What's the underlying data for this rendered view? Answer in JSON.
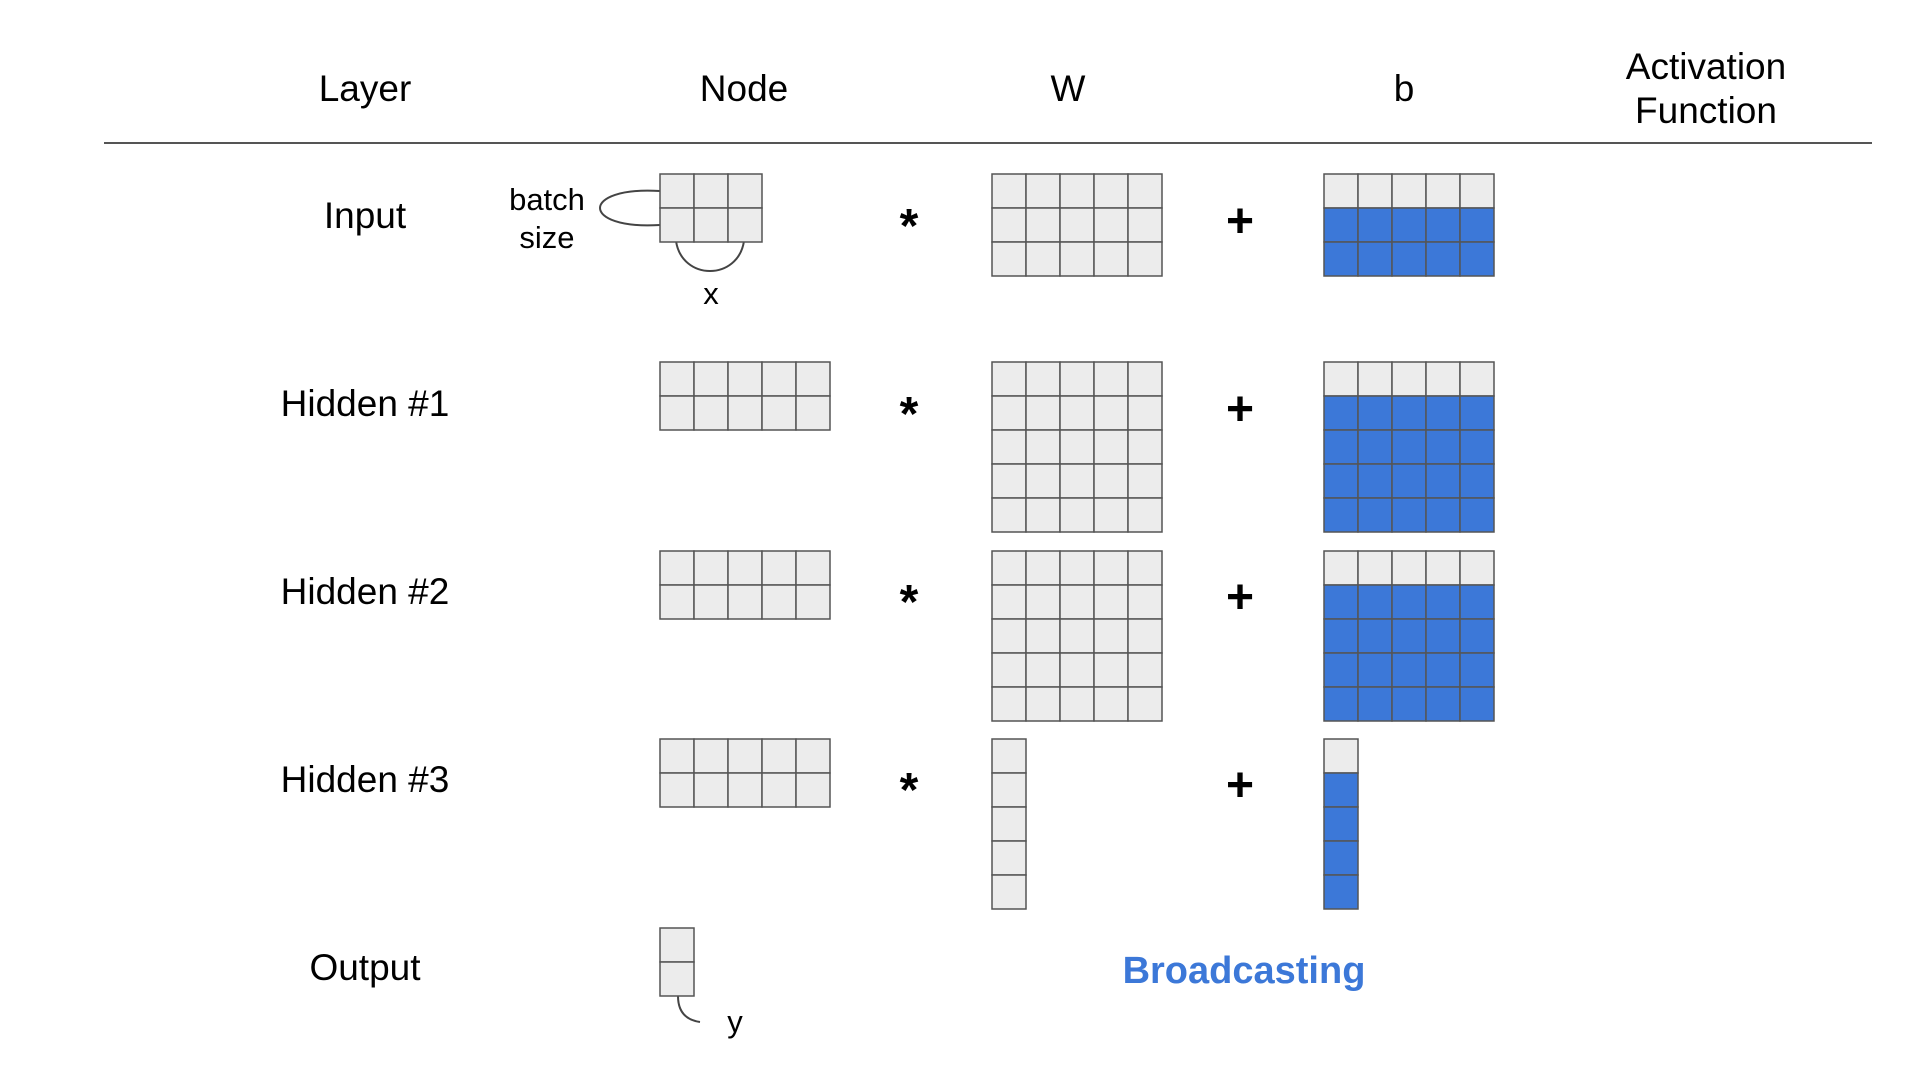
{
  "header": {
    "layer": "Layer",
    "node": "Node",
    "w": "W",
    "b": "b",
    "activation_line1": "Activation",
    "activation_line2": "Function"
  },
  "rows": [
    {
      "id": "input",
      "label": "Input",
      "node": {
        "rows": 2,
        "cols": 3
      },
      "w": {
        "rows": 3,
        "cols": 5
      },
      "b": {
        "rows": 3,
        "cols": 5
      },
      "op1": "*",
      "op2": "+"
    },
    {
      "id": "hidden1",
      "label": "Hidden #1",
      "node": {
        "rows": 2,
        "cols": 5
      },
      "w": {
        "rows": 5,
        "cols": 5
      },
      "b": {
        "rows": 5,
        "cols": 5
      },
      "op1": "*",
      "op2": "+"
    },
    {
      "id": "hidden2",
      "label": "Hidden #2",
      "node": {
        "rows": 2,
        "cols": 5
      },
      "w": {
        "rows": 5,
        "cols": 5
      },
      "b": {
        "rows": 5,
        "cols": 5
      },
      "op1": "*",
      "op2": "+"
    },
    {
      "id": "hidden3",
      "label": "Hidden #3",
      "node": {
        "rows": 2,
        "cols": 5
      },
      "w": {
        "rows": 5,
        "cols": 1
      },
      "b": {
        "rows": 5,
        "cols": 1
      },
      "op1": "*",
      "op2": "+"
    },
    {
      "id": "output",
      "label": "Output",
      "node": {
        "rows": 2,
        "cols": 1
      }
    }
  ],
  "annotations": {
    "batch_line1": "batch",
    "batch_line2": "size",
    "x": "x",
    "y": "y",
    "broadcasting": "Broadcasting"
  },
  "colors": {
    "cell_fill": "#ececec",
    "cell_stroke": "#555555",
    "bias_fill": "#3c78d8",
    "broadcast_text": "#3c78d8",
    "rule": "#555555"
  }
}
